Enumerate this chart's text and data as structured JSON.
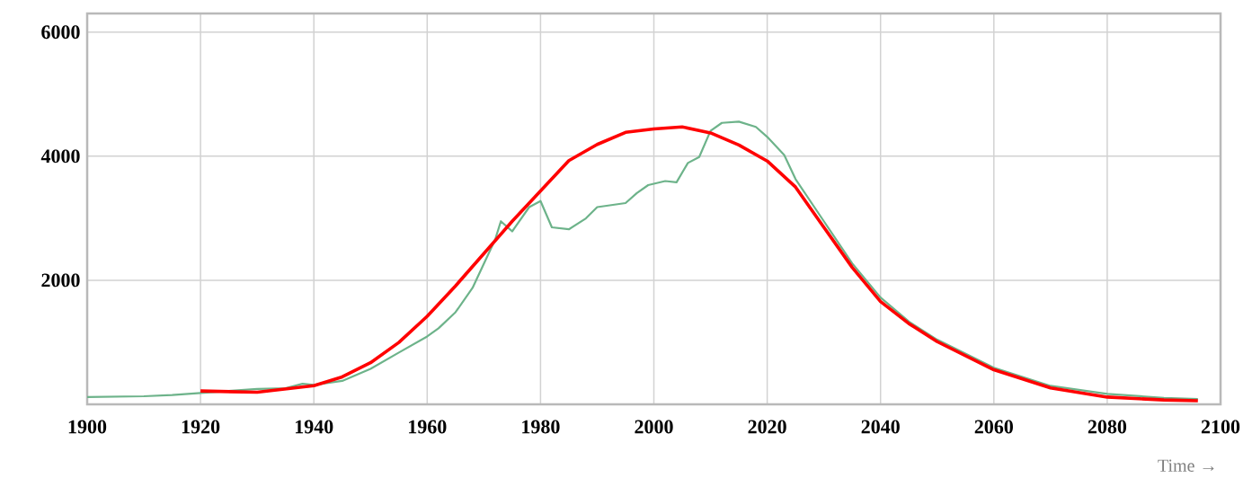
{
  "chart_data": {
    "type": "line",
    "xlabel": "Time →",
    "xlim": [
      1900,
      2100
    ],
    "ylim": [
      0,
      6300
    ],
    "xticks": [
      1900,
      1920,
      1940,
      1960,
      1980,
      2000,
      2020,
      2040,
      2060,
      2080,
      2100
    ],
    "yticks": [
      2000,
      4000,
      6000
    ],
    "grid": true,
    "series": [
      {
        "color": "#6db38a",
        "x": [
          1900,
          1910,
          1915,
          1920,
          1930,
          1935,
          1938,
          1940,
          1945,
          1950,
          1955,
          1960,
          1962,
          1965,
          1968,
          1970,
          1972,
          1973,
          1975,
          1978,
          1980,
          1982,
          1985,
          1988,
          1990,
          1995,
          1997,
          1999,
          2002,
          2004,
          2006,
          2008,
          2010,
          2012,
          2015,
          2018,
          2020,
          2023,
          2025,
          2030,
          2035,
          2040,
          2045,
          2050,
          2060,
          2070,
          2080,
          2090,
          2096
        ],
        "values": [
          117,
          130,
          150,
          182,
          248,
          260,
          332,
          313,
          378,
          573,
          834,
          1094,
          1225,
          1485,
          1876,
          2267,
          2658,
          2951,
          2788,
          3179,
          3277,
          2853,
          2821,
          2997,
          3179,
          3244,
          3405,
          3534,
          3599,
          3579,
          3890,
          3987,
          4408,
          4537,
          4557,
          4472,
          4311,
          4019,
          3631,
          2951,
          2272,
          1722,
          1333,
          1042,
          589,
          298,
          168,
          104,
          84
        ]
      },
      {
        "color": "#ff0000",
        "x": [
          1920,
          1930,
          1940,
          1945,
          1950,
          1955,
          1960,
          1965,
          1970,
          1975,
          1980,
          1985,
          1990,
          1995,
          2000,
          2005,
          2010,
          2015,
          2020,
          2025,
          2030,
          2035,
          2040,
          2045,
          2050,
          2060,
          2070,
          2080,
          2090,
          2096
        ],
        "values": [
          215,
          195,
          300,
          443,
          671,
          997,
          1420,
          1909,
          2430,
          2951,
          3440,
          3928,
          4189,
          4384,
          4440,
          4472,
          4375,
          4181,
          3922,
          3502,
          2854,
          2207,
          1657,
          1301,
          1010,
          557,
          265,
          117,
          71,
          58
        ]
      }
    ]
  }
}
